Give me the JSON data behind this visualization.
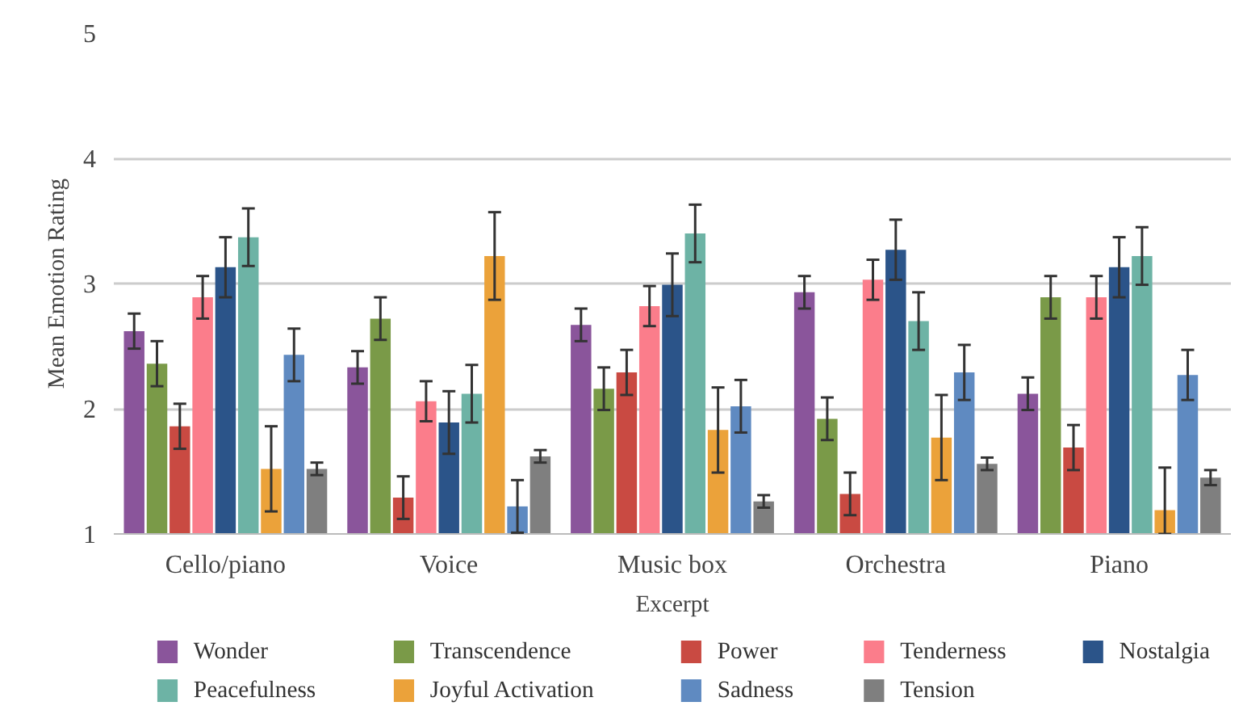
{
  "chart_data": {
    "type": "bar",
    "ylabel": "Mean Emotion Rating",
    "xlabel": "Excerpt",
    "categories": [
      "Cello/piano",
      "Voice",
      "Music box",
      "Orchestra",
      "Piano"
    ],
    "ylim": [
      1,
      5
    ],
    "yticks": [
      1,
      2,
      3,
      4,
      5
    ],
    "grid": "y",
    "legend": "bottom",
    "series": [
      {
        "name": "Wonder",
        "color": "#8a559b",
        "values": [
          2.62,
          2.33,
          2.67,
          2.93,
          2.12
        ],
        "errors": [
          0.14,
          0.13,
          0.13,
          0.13,
          0.13
        ]
      },
      {
        "name": "Transcendence",
        "color": "#7a9a48",
        "values": [
          2.36,
          2.72,
          2.16,
          1.92,
          2.89
        ],
        "errors": [
          0.18,
          0.17,
          0.17,
          0.17,
          0.17
        ]
      },
      {
        "name": "Power",
        "color": "#c94a42",
        "values": [
          1.86,
          1.29,
          2.29,
          1.32,
          1.69
        ],
        "errors": [
          0.18,
          0.17,
          0.18,
          0.17,
          0.18
        ]
      },
      {
        "name": "Tenderness",
        "color": "#fb7d8b",
        "values": [
          2.89,
          2.06,
          2.82,
          3.03,
          2.89
        ],
        "errors": [
          0.17,
          0.16,
          0.16,
          0.16,
          0.17
        ]
      },
      {
        "name": "Nostalgia",
        "color": "#2b5489",
        "values": [
          3.13,
          1.89,
          2.99,
          3.27,
          3.13
        ],
        "errors": [
          0.24,
          0.25,
          0.25,
          0.24,
          0.24
        ]
      },
      {
        "name": "Peacefulness",
        "color": "#6db3a5",
        "values": [
          3.37,
          2.12,
          3.4,
          2.7,
          3.22
        ],
        "errors": [
          0.23,
          0.23,
          0.23,
          0.23,
          0.23
        ]
      },
      {
        "name": "Joyful Activation",
        "color": "#eba23a",
        "values": [
          1.52,
          3.22,
          1.83,
          1.77,
          1.19
        ],
        "errors": [
          0.34,
          0.35,
          0.34,
          0.34,
          [
            1,
            1.53
          ]
        ]
      },
      {
        "name": "Sadness",
        "color": "#5f8ac1",
        "values": [
          2.43,
          1.22,
          2.02,
          2.29,
          2.27
        ],
        "errors": [
          0.21,
          0.21,
          0.21,
          0.22,
          0.2
        ]
      },
      {
        "name": "Tension",
        "color": "#7f7f7f",
        "values": [
          1.52,
          1.62,
          1.26,
          1.56,
          1.45
        ],
        "errors": [
          0.05,
          0.05,
          0.05,
          0.05,
          0.06
        ]
      }
    ]
  }
}
